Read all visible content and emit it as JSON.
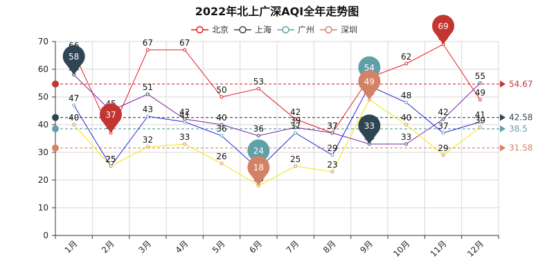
{
  "chart_data": {
    "type": "line",
    "title": "2022年北上广深AQI全年走势图",
    "categories": [
      "1月",
      "2月",
      "3月",
      "4月",
      "5月",
      "6月",
      "7月",
      "8月",
      "9月",
      "10月",
      "11月",
      "12月"
    ],
    "ylim": [
      0,
      70
    ],
    "yticks": [
      0,
      10,
      20,
      30,
      40,
      50,
      60,
      70
    ],
    "grid": true,
    "legend_position": "top-center",
    "series": [
      {
        "name": "北京",
        "color": "#e41a1c",
        "line_color": "#e41a1c",
        "values": [
          66,
          37,
          67,
          67,
          50,
          53,
          42,
          37,
          57,
          62,
          69,
          49
        ],
        "max": 69,
        "min": 37,
        "average": 54.67,
        "marker_color": "#c23531"
      },
      {
        "name": "上海",
        "color": "#2f4554",
        "line_color": "#7b1fa2",
        "values": [
          58,
          45,
          51,
          42,
          40,
          36,
          39,
          37,
          33,
          33,
          42,
          55
        ],
        "max": 58,
        "min": 33,
        "average": 42.58,
        "marker_color": "#2f4554"
      },
      {
        "name": "广州",
        "color": "#61a0a8",
        "line_color": "#1f1fe0",
        "values": [
          47,
          25,
          43,
          41,
          36,
          24,
          37,
          29,
          54,
          48,
          37,
          41
        ],
        "max": 54,
        "min": 24,
        "average": 38.5,
        "marker_color": "#61a0a8"
      },
      {
        "name": "深圳",
        "color": "#d48265",
        "line_color": "#f2e600",
        "values": [
          40,
          25,
          32,
          33,
          26,
          18,
          25,
          23,
          49,
          40,
          29,
          39
        ],
        "max": 49,
        "min": 18,
        "average": 31.58,
        "marker_color": "#d48265"
      }
    ]
  }
}
